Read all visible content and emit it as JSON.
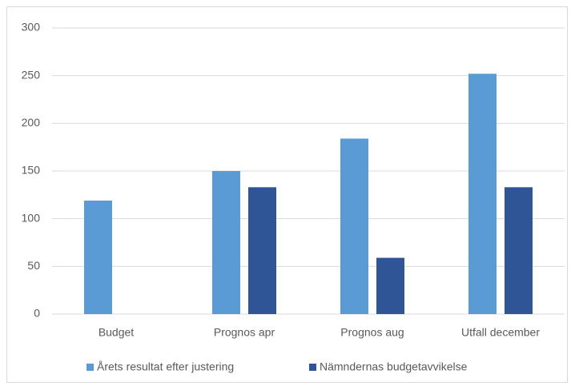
{
  "chart_data": {
    "type": "bar",
    "categories": [
      "Budget",
      "Prognos apr",
      "Prognos aug",
      "Utfall december"
    ],
    "series": [
      {
        "name": "Årets resultat efter justering",
        "color": "#5b9bd5",
        "values": [
          119,
          150,
          184,
          252
        ]
      },
      {
        "name": "Nämndernas budgetavvikelse",
        "color": "#2f5597",
        "values": [
          null,
          133,
          59,
          133
        ]
      }
    ],
    "ylim": [
      0,
      300
    ],
    "yticks": [
      0,
      50,
      100,
      150,
      200,
      250,
      300
    ],
    "grid": true,
    "legend": "bottom"
  }
}
